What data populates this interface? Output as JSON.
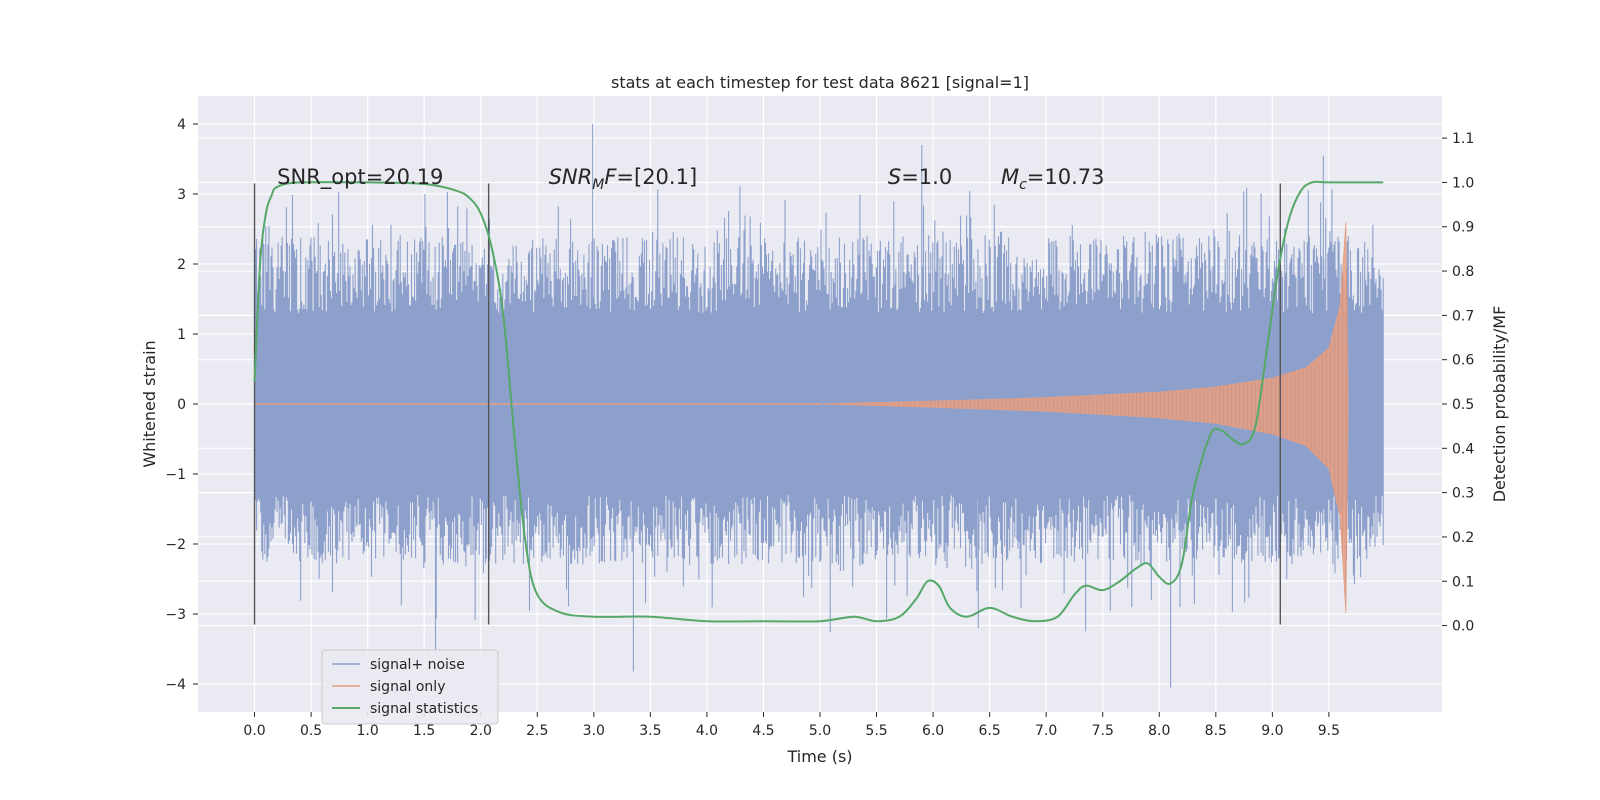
{
  "chart_data": {
    "type": "line",
    "title": "stats at each timestep for test data 8621 [signal=1]",
    "xlabel": "Time (s)",
    "ylabel_left": "Whitened strain",
    "ylabel_right": "Detection probability/MF",
    "xlim": [
      -0.5,
      10.5
    ],
    "ylim_left": [
      -4.4,
      4.4
    ],
    "ylim_right": [
      -0.195,
      1.195
    ],
    "x_ticks": [
      "0.0",
      "0.5",
      "1.0",
      "1.5",
      "2.0",
      "2.5",
      "3.0",
      "3.5",
      "4.0",
      "4.5",
      "5.0",
      "5.5",
      "6.0",
      "6.5",
      "7.0",
      "7.5",
      "8.0",
      "8.5",
      "9.0",
      "9.5"
    ],
    "y_ticks_left": [
      "−4",
      "−3",
      "−2",
      "−1",
      "0",
      "1",
      "2",
      "3",
      "4"
    ],
    "y_ticks_right": [
      "0.0",
      "0.1",
      "0.2",
      "0.3",
      "0.4",
      "0.5",
      "0.6",
      "0.7",
      "0.8",
      "0.9",
      "1.0",
      "1.1"
    ],
    "grid": true,
    "legend_position": "lower-left",
    "colors": {
      "signal_noise": "#8da0cb",
      "signal_only": "#e5a085",
      "signal_statistics": "#55a868",
      "vlines": "#555555",
      "background": "#eaeaf2"
    },
    "vertical_lines_x": [
      0.0,
      2.07,
      9.07
    ],
    "vertical_lines_range": [
      -3.15,
      3.15
    ],
    "noise_envelope": {
      "x_range": [
        0.0,
        9.98
      ],
      "typical_upper": 2.6,
      "typical_lower": -2.4,
      "extreme_max": 4.0,
      "extreme_min": -4.05
    },
    "signal_envelope": {
      "x": [
        5.0,
        6.0,
        7.0,
        8.0,
        8.5,
        9.0,
        9.3,
        9.5,
        9.6,
        9.65,
        9.67
      ],
      "amplitude": [
        0.0,
        0.04,
        0.09,
        0.17,
        0.24,
        0.37,
        0.52,
        0.8,
        1.4,
        2.6,
        0.0
      ]
    },
    "series": [
      {
        "name": "signal statistics",
        "x": [
          0.0,
          0.05,
          0.1,
          0.15,
          0.2,
          0.4,
          1.0,
          1.4,
          1.6,
          1.8,
          1.9,
          2.0,
          2.1,
          2.2,
          2.3,
          2.4,
          2.5,
          2.7,
          3.0,
          3.5,
          4.0,
          4.5,
          5.0,
          5.3,
          5.5,
          5.7,
          5.85,
          5.95,
          6.05,
          6.15,
          6.3,
          6.5,
          6.7,
          6.9,
          7.1,
          7.25,
          7.35,
          7.5,
          7.65,
          7.8,
          7.9,
          8.0,
          8.1,
          8.2,
          8.3,
          8.45,
          8.55,
          8.65,
          8.75,
          8.85,
          8.95,
          9.05,
          9.15,
          9.25,
          9.35,
          9.5,
          9.98
        ],
        "values": [
          0.55,
          0.82,
          0.93,
          0.97,
          0.99,
          1.0,
          1.0,
          0.998,
          0.993,
          0.98,
          0.965,
          0.93,
          0.85,
          0.7,
          0.42,
          0.18,
          0.07,
          0.03,
          0.02,
          0.02,
          0.01,
          0.01,
          0.01,
          0.02,
          0.01,
          0.02,
          0.06,
          0.1,
          0.09,
          0.04,
          0.02,
          0.04,
          0.02,
          0.01,
          0.02,
          0.07,
          0.09,
          0.08,
          0.1,
          0.13,
          0.14,
          0.11,
          0.095,
          0.14,
          0.3,
          0.43,
          0.44,
          0.42,
          0.41,
          0.45,
          0.62,
          0.8,
          0.92,
          0.98,
          1.0,
          1.0,
          1.0
        ]
      }
    ],
    "legend": [
      {
        "key": "signal_noise",
        "label": "signal+ noise"
      },
      {
        "key": "signal_only",
        "label": "signal only"
      },
      {
        "key": "signal_statistics",
        "label": "signal statistics"
      }
    ],
    "annotations": [
      {
        "id": "snr-opt",
        "x": 0.2,
        "text": "SNR_opt=20.19"
      },
      {
        "id": "snr-mf",
        "x": 2.6,
        "pre": "SNR",
        "sub": "M",
        "post": "F=[20.1]"
      },
      {
        "id": "s",
        "x": 5.6,
        "pre": "S",
        "post": "=1.0"
      },
      {
        "id": "mc",
        "x": 6.6,
        "pre": "M",
        "sub": "c",
        "post": "=10.73"
      }
    ]
  }
}
